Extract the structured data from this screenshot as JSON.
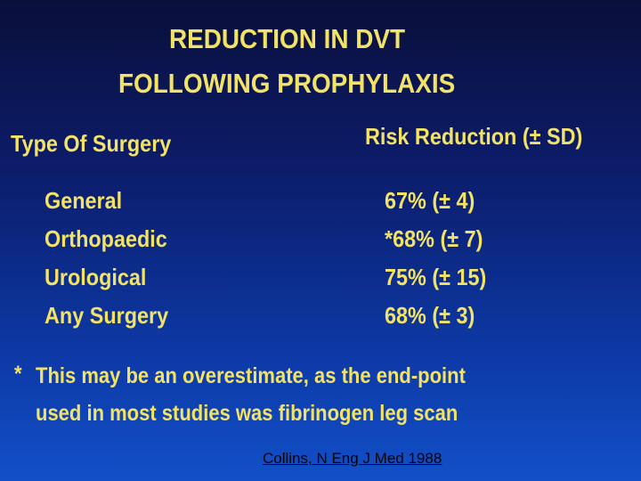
{
  "title": [
    "REDUCTION IN DVT",
    "FOLLOWING PROPHYLAXIS"
  ],
  "table": {
    "columns": [
      "Type Of Surgery",
      "Risk Reduction (± SD)"
    ],
    "rows": [
      [
        "General",
        "67% (± 4)"
      ],
      [
        "Orthopaedic",
        "*68% (± 7)"
      ],
      [
        "Urological",
        "75% (± 15)"
      ],
      [
        "Any Surgery",
        "68% (± 3)"
      ]
    ]
  },
  "footnote": {
    "marker": "*",
    "lines": [
      "This may be an overestimate, as the end-point",
      "used in most studies was fibrinogen leg scan"
    ]
  },
  "citation": "Collins, N Eng J Med 1988"
}
